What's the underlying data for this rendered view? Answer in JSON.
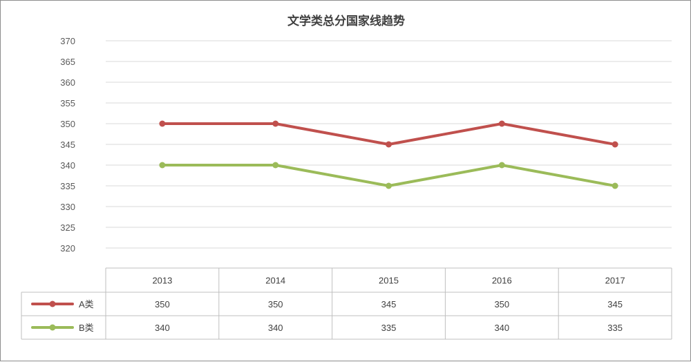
{
  "chart_data": {
    "type": "line",
    "title": "文学类总分国家线趋势",
    "categories": [
      "2013",
      "2014",
      "2015",
      "2016",
      "2017"
    ],
    "series": [
      {
        "name": "A类",
        "values": [
          350,
          350,
          345,
          350,
          345
        ],
        "color": "#c0504d"
      },
      {
        "name": "B类",
        "values": [
          340,
          340,
          335,
          340,
          335
        ],
        "color": "#9bbb59"
      }
    ],
    "xlabel": "",
    "ylabel": "",
    "ylim": [
      320,
      370
    ],
    "yticks": [
      320,
      325,
      330,
      335,
      340,
      345,
      350,
      355,
      360,
      365,
      370
    ],
    "grid": true,
    "legend": "data-table",
    "data_table": true
  }
}
